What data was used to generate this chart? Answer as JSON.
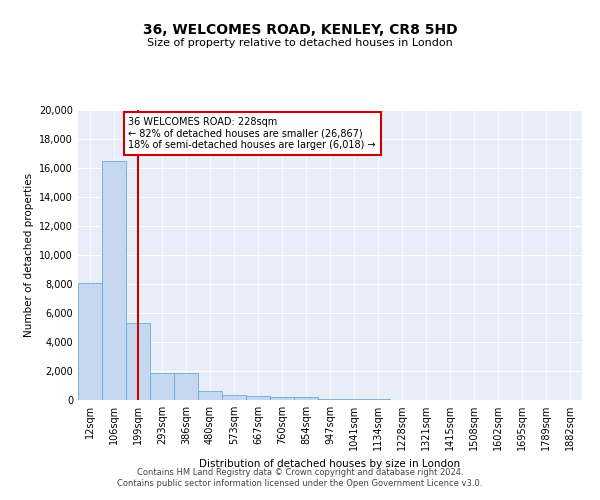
{
  "title": "36, WELCOMES ROAD, KENLEY, CR8 5HD",
  "subtitle": "Size of property relative to detached houses in London",
  "xlabel": "Distribution of detached houses by size in London",
  "ylabel": "Number of detached properties",
  "bar_color": "#c5d8f0",
  "bar_edge_color": "#6aaad4",
  "vline_color": "#cc0000",
  "vline_x": 2,
  "annotation_text": "36 WELCOMES ROAD: 228sqm\n← 82% of detached houses are smaller (26,867)\n18% of semi-detached houses are larger (6,018) →",
  "annotation_box_color": "#ffffff",
  "annotation_box_edge": "#cc0000",
  "footer_text": "Contains HM Land Registry data © Crown copyright and database right 2024.\nContains public sector information licensed under the Open Government Licence v3.0.",
  "bin_labels": [
    "12sqm",
    "106sqm",
    "199sqm",
    "293sqm",
    "386sqm",
    "480sqm",
    "573sqm",
    "667sqm",
    "760sqm",
    "854sqm",
    "947sqm",
    "1041sqm",
    "1134sqm",
    "1228sqm",
    "1321sqm",
    "1415sqm",
    "1508sqm",
    "1602sqm",
    "1695sqm",
    "1789sqm",
    "1882sqm"
  ],
  "bar_heights": [
    8100,
    16500,
    5300,
    1850,
    1850,
    650,
    350,
    280,
    220,
    200,
    100,
    60,
    40,
    25,
    15,
    10,
    6,
    4,
    3,
    2,
    1
  ],
  "ylim": [
    0,
    20000
  ],
  "yticks": [
    0,
    2000,
    4000,
    6000,
    8000,
    10000,
    12000,
    14000,
    16000,
    18000,
    20000
  ],
  "background_color": "#e8eef8",
  "grid_color": "#ffffff",
  "fig_bg": "#ffffff"
}
